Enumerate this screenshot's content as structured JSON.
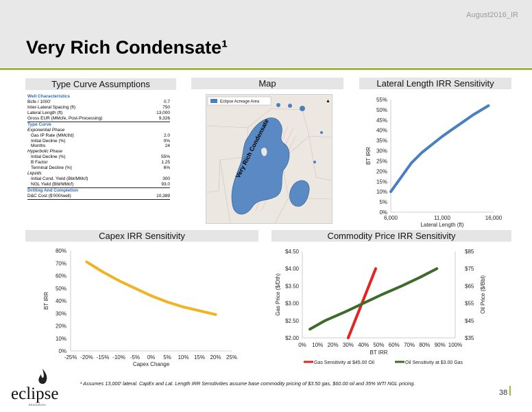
{
  "header": {
    "date_tag": "August2016_IR",
    "title": "Very Rich Condensate¹"
  },
  "sections": {
    "type_curve": "Type Curve Assumptions",
    "map": "Map",
    "lateral": "Lateral Length IRR Sensitivity",
    "capex": "Capex IRR Sensitivity",
    "commodity": "Commodity Price IRR Sensitivity"
  },
  "table_rows": [
    {
      "label": "Well Characteristics",
      "value": "",
      "style": "header"
    },
    {
      "label": "Bcfe / 1000'",
      "value": "0.7",
      "style": ""
    },
    {
      "label": "Inter-Lateral Spacing (ft)",
      "value": "750",
      "style": ""
    },
    {
      "label": "Lateral Length (ft)",
      "value": "13,000",
      "style": ""
    },
    {
      "label": "Gross EUR (MMcfe, Post-Processing)",
      "value": "9,326",
      "style": "ul"
    },
    {
      "label": "Type Curve",
      "value": "",
      "style": "header"
    },
    {
      "label": "Exponential Phase",
      "value": "",
      "style": "sub"
    },
    {
      "label": "Gas IP Rate (MMcf/d)",
      "value": "2.0",
      "style": "indent"
    },
    {
      "label": "Initial Decline (%)",
      "value": "0%",
      "style": "indent"
    },
    {
      "label": "Months",
      "value": "24",
      "style": "indent"
    },
    {
      "label": "Hyperbolic Phase",
      "value": "",
      "style": "sub"
    },
    {
      "label": "Initial Decline (%)",
      "value": "55%",
      "style": "indent"
    },
    {
      "label": "B Factor",
      "value": "1.25",
      "style": "indent"
    },
    {
      "label": "Terminal Decline (%)",
      "value": "6%",
      "style": "indent"
    },
    {
      "label": "Liquids",
      "value": "",
      "style": "sub"
    },
    {
      "label": "Initial Cond. Yield (Bbl/MMcf)",
      "value": "300",
      "style": "indent"
    },
    {
      "label": "NGL Yield (Bbl/MMcf)",
      "value": "93.0",
      "style": "indent ul"
    },
    {
      "label": "Drilling And Completion",
      "value": "",
      "style": "header"
    },
    {
      "label": "D&C Cost ($'000/well)",
      "value": "10,389",
      "style": "ul"
    }
  ],
  "map": {
    "legend_label": "Eclipse Acreage Area",
    "overlay_label": "Very Rich Condensate",
    "acreage_color": "#4a7fc1"
  },
  "footnote": "¹ Assumes 13,000' lateral. CapEx and Lat. Length IRR Sensitivities assume base commodity pricing of $3.50 gas, $60.00 oil and 35% WTI NGL pricing.",
  "page_number": "38",
  "logo": {
    "word": "eclipse",
    "sub": "RESOURCES"
  },
  "chart_data": [
    {
      "type": "line",
      "title": "Lateral Length IRR Sensitivity",
      "xlabel": "Lateral Length (ft)",
      "ylabel": "BT IRR",
      "xlim": [
        6000,
        16000
      ],
      "ylim": [
        0,
        55
      ],
      "xticks": [
        "6,000",
        "11,000",
        "16,000"
      ],
      "yticks": [
        "0%",
        "5%",
        "10%",
        "15%",
        "20%",
        "25%",
        "30%",
        "35%",
        "40%",
        "45%",
        "50%",
        "55%"
      ],
      "grid": false,
      "color": "#4a7fc1",
      "series": [
        {
          "x": [
            6000,
            7000,
            8000,
            9000,
            10000,
            11000,
            12000,
            13000,
            14000,
            15000,
            15500
          ],
          "values": [
            10,
            17,
            24,
            29,
            33,
            37,
            40.5,
            44,
            47.5,
            50.5,
            52
          ]
        }
      ]
    },
    {
      "type": "line",
      "title": "Capex IRR Sensitivity",
      "xlabel": "Capex Change",
      "ylabel": "BT IRR",
      "xlim": [
        -25,
        25
      ],
      "ylim": [
        0,
        80
      ],
      "xticks": [
        "-25%",
        "-20%",
        "-15%",
        "-10%",
        "-5%",
        "0%",
        "5%",
        "10%",
        "15%",
        "20%",
        "25%"
      ],
      "yticks": [
        "0%",
        "10%",
        "20%",
        "30%",
        "40%",
        "50%",
        "60%",
        "70%",
        "80%"
      ],
      "grid": false,
      "color": "#f0b323",
      "series": [
        {
          "x": [
            -20,
            -15,
            -10,
            -5,
            0,
            5,
            10,
            15,
            20
          ],
          "values": [
            71,
            63,
            56,
            50,
            44,
            39,
            35,
            32,
            29
          ]
        }
      ]
    },
    {
      "type": "line",
      "title": "Commodity Price IRR Sensitivity",
      "xlabel": "BT IRR",
      "ylabel": "Gas Price ($/Dth)",
      "ylabel_right": "Oil Price ($/Bbl)",
      "xlim": [
        0,
        100
      ],
      "ylim": [
        2.0,
        4.5
      ],
      "ylim_right": [
        35,
        85
      ],
      "xticks": [
        "0%",
        "10%",
        "20%",
        "30%",
        "40%",
        "50%",
        "60%",
        "70%",
        "80%",
        "90%",
        "100%"
      ],
      "yticks": [
        "$2.00",
        "$2.50",
        "$3.00",
        "$3.50",
        "$4.00",
        "$4.50"
      ],
      "yticks_right": [
        "$35",
        "$45",
        "$55",
        "$65",
        "$75",
        "$85"
      ],
      "grid": false,
      "legend": "bottom",
      "series": [
        {
          "name": "Gas Sensitivity at $45.00 Oil",
          "color": "#e52421",
          "axis": "left",
          "x": [
            30,
            39,
            48
          ],
          "values": [
            2.0,
            3.0,
            4.0
          ]
        },
        {
          "name": "Oil Sensitivity at $3.00 Gas",
          "color": "#3d6b2b",
          "axis": "right",
          "x": [
            5,
            15,
            28,
            40,
            52,
            65,
            77,
            88
          ],
          "values": [
            40,
            45,
            50,
            55,
            60,
            65,
            70,
            75
          ]
        }
      ]
    }
  ]
}
